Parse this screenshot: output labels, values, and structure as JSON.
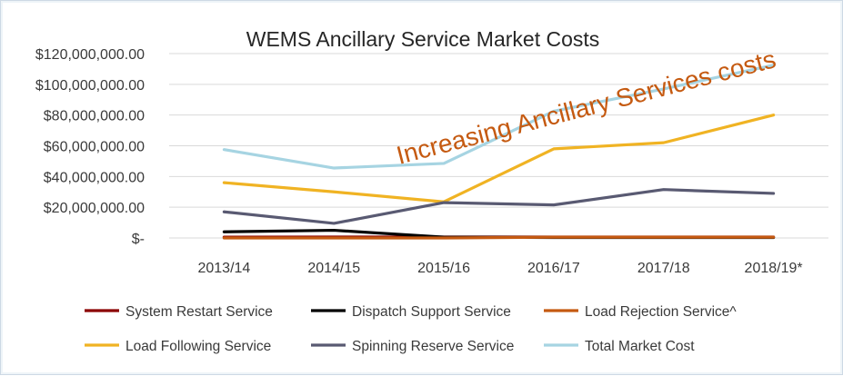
{
  "chart_data": {
    "type": "line",
    "title": "WEMS Ancillary Service Market Costs",
    "annotation": "Increasing Ancillary Services costs",
    "categories": [
      "2013/14",
      "2014/15",
      "2015/16",
      "2016/17",
      "2017/18",
      "2018/19*"
    ],
    "ylim": [
      0,
      120000000
    ],
    "yticks": [
      {
        "value": 0,
        "label": "$-"
      },
      {
        "value": 20000000,
        "label": "$20,000,000.00"
      },
      {
        "value": 40000000,
        "label": "$40,000,000.00"
      },
      {
        "value": 60000000,
        "label": "$60,000,000.00"
      },
      {
        "value": 80000000,
        "label": "$80,000,000.00"
      },
      {
        "value": 100000000,
        "label": "$100,000,000.00"
      },
      {
        "value": 120000000,
        "label": "$120,000,000.00"
      }
    ],
    "grid": true,
    "legend_position": "bottom",
    "series": [
      {
        "name": "System Restart Service",
        "color": "#8b0000",
        "values": [
          500000,
          600000,
          600000,
          600000,
          600000,
          600000
        ]
      },
      {
        "name": "Dispatch Support Service",
        "color": "#000000",
        "values": [
          4000000,
          5000000,
          500000,
          300000,
          300000,
          300000
        ]
      },
      {
        "name": "Load Rejection Service^",
        "color": "#c55a11",
        "values": [
          0,
          0,
          0,
          500000,
          500000,
          500000
        ]
      },
      {
        "name": "Load Following Service",
        "color": "#f0b323",
        "values": [
          36000000,
          30000000,
          23500000,
          58000000,
          62000000,
          80000000
        ]
      },
      {
        "name": "Spinning Reserve Service",
        "color": "#595a72",
        "values": [
          17000000,
          9500000,
          23000000,
          21500000,
          31500000,
          29000000
        ]
      },
      {
        "name": "Total Market Cost",
        "color": "#a6d4e2",
        "values": [
          57500000,
          45500000,
          48500000,
          82500000,
          97000000,
          112500000
        ]
      }
    ]
  }
}
